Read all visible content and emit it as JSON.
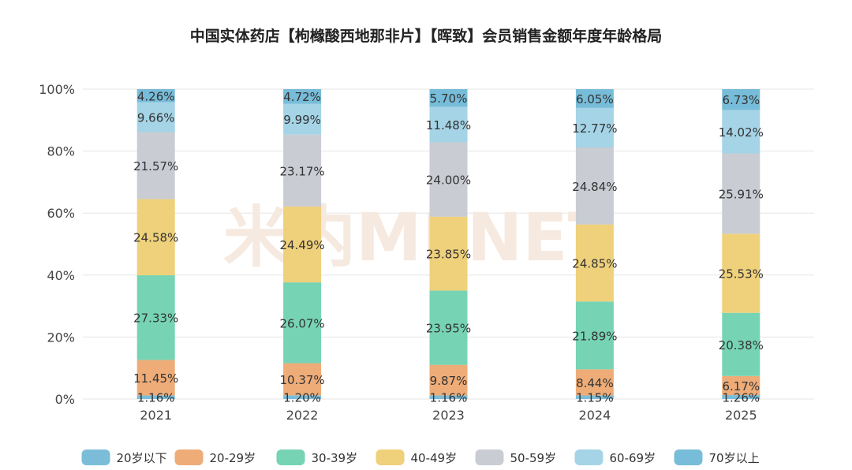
{
  "chart_data": {
    "type": "bar",
    "stacked": true,
    "normalized": true,
    "title": "中国实体药店【枸橼酸西地那非片】【晖致】会员销售金额年度年龄格局",
    "watermark": "米内MENET",
    "categories": [
      "2021",
      "2022",
      "2023",
      "2024",
      "2025"
    ],
    "y_ticks": [
      "0%",
      "20%",
      "40%",
      "60%",
      "80%",
      "100%"
    ],
    "ylim": [
      0,
      100
    ],
    "grid": true,
    "legend_position": "bottom",
    "series": [
      {
        "name": "20岁以下",
        "color": "#7bbdd9",
        "values": [
          1.16,
          1.2,
          1.16,
          1.15,
          1.26
        ],
        "labels": [
          "1.16%",
          "1.20%",
          "1.16%",
          "1.15%",
          "1.26%"
        ]
      },
      {
        "name": "20-29岁",
        "color": "#eeac78",
        "values": [
          11.45,
          10.37,
          9.87,
          8.44,
          6.17
        ],
        "labels": [
          "11.45%",
          "10.37%",
          "9.87%",
          "8.44%",
          "6.17%"
        ]
      },
      {
        "name": "30-39岁",
        "color": "#76d4b4",
        "values": [
          27.33,
          26.07,
          23.95,
          21.89,
          20.38
        ],
        "labels": [
          "27.33%",
          "26.07%",
          "23.95%",
          "21.89%",
          "20.38%"
        ]
      },
      {
        "name": "40-49岁",
        "color": "#efd07b",
        "values": [
          24.58,
          24.49,
          23.85,
          24.85,
          25.53
        ],
        "labels": [
          "24.58%",
          "24.49%",
          "23.85%",
          "24.85%",
          "25.53%"
        ]
      },
      {
        "name": "50-59岁",
        "color": "#c9ccd3",
        "values": [
          21.57,
          23.17,
          24.0,
          24.84,
          25.91
        ],
        "labels": [
          "21.57%",
          "23.17%",
          "24.00%",
          "24.84%",
          "25.91%"
        ]
      },
      {
        "name": "60-69岁",
        "color": "#a4d4e6",
        "values": [
          9.66,
          9.99,
          11.48,
          12.77,
          14.02
        ],
        "labels": [
          "9.66%",
          "9.99%",
          "11.48%",
          "12.77%",
          "14.02%"
        ]
      },
      {
        "name": "70岁以上",
        "color": "#77bcd8",
        "values": [
          4.26,
          4.72,
          5.7,
          6.05,
          6.73
        ],
        "labels": [
          "4.26%",
          "4.72%",
          "5.70%",
          "6.05%",
          "6.73%"
        ]
      }
    ]
  }
}
